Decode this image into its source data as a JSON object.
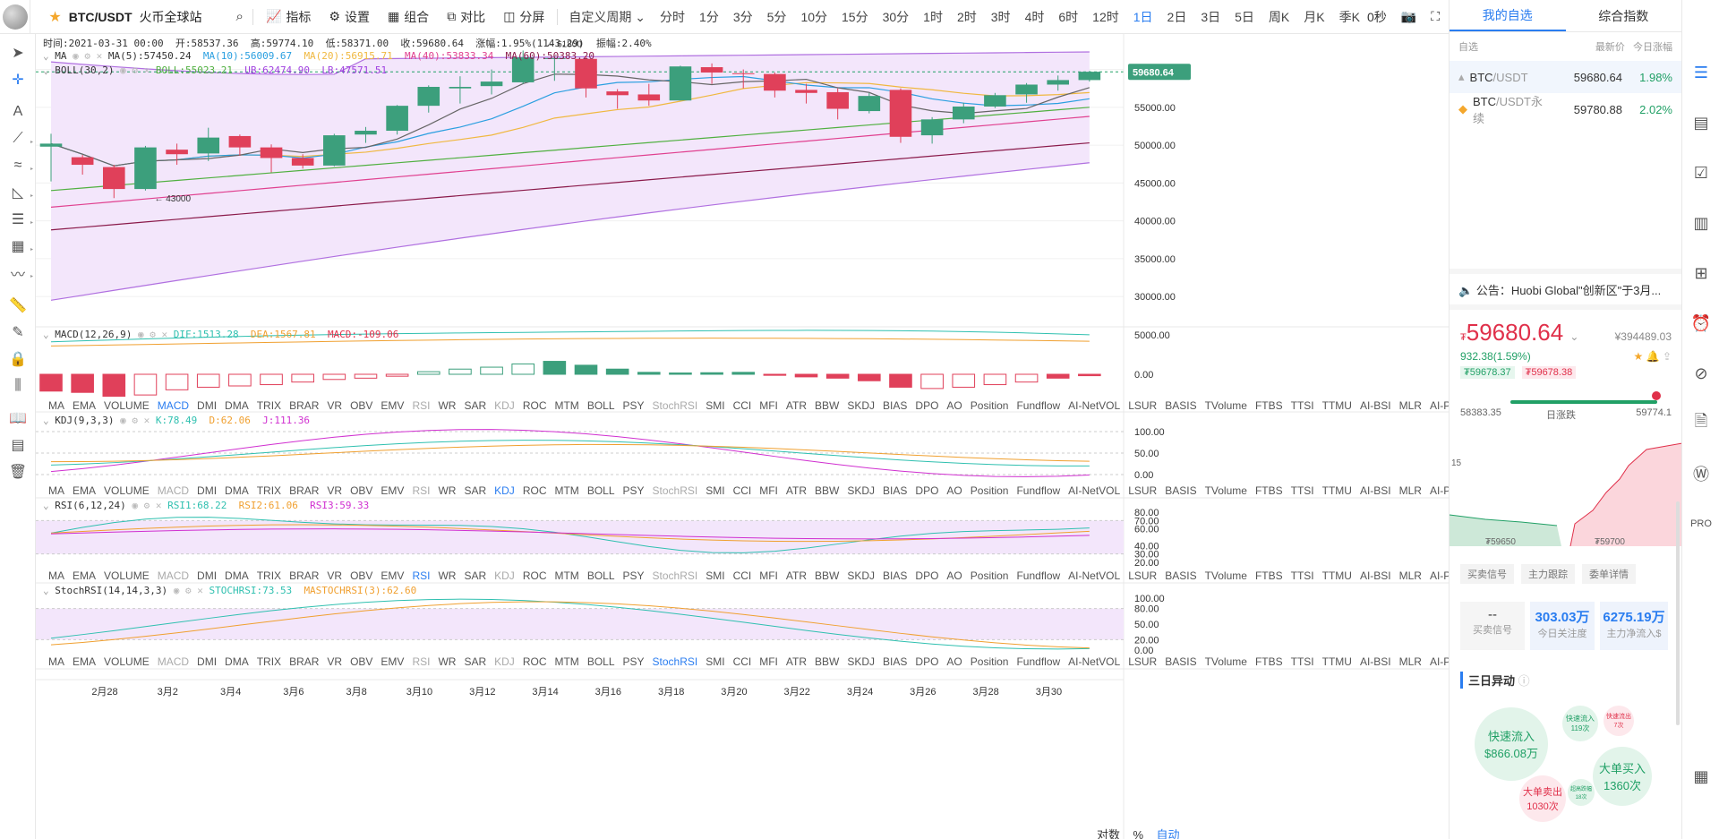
{
  "header": {
    "symbol": "BTC/USDT",
    "exchange": "火币全球站",
    "tools": [
      "指标",
      "设置",
      "组合",
      "对比",
      "分屏"
    ],
    "periods": [
      "自定义周期",
      "分时",
      "1分",
      "3分",
      "5分",
      "10分",
      "15分",
      "30分",
      "1时",
      "2时",
      "3时",
      "4时",
      "6时",
      "12时",
      "1日",
      "2日",
      "3日",
      "5日",
      "周K",
      "月K",
      "季K"
    ],
    "active_period": "1日",
    "countdown": "0秒"
  },
  "ohlc": {
    "time": "时间:2021-03-31 00:00",
    "open": "开:58537.36",
    "high": "高:59774.10",
    "low": "低:58371.00",
    "close": "收:59680.64",
    "change": "涨幅:1.95%(1143.29)",
    "amp": "振幅:2.40%"
  },
  "ma": {
    "title": "MA",
    "ma5": "MA(5):57450.24",
    "ma10": "MA(10):56009.67",
    "ma20": "MA(20):56915.71",
    "ma40": "MA(40):53833.34",
    "ma60": "MA(60):50383.20"
  },
  "boll": {
    "title": "BOLL(30,2)",
    "boll": "BOLL:55023.21",
    "ub": "UB:62474.90",
    "lb": "LB:47571.51"
  },
  "price_axis": [
    "59680.64",
    "55000.00",
    "50000.00",
    "45000.00",
    "40000.00",
    "35000.00",
    "30000.00"
  ],
  "markers": {
    "high": "61800",
    "low": "43000"
  },
  "macd": {
    "title": "MACD(12,26,9)",
    "dif": "DIF:1513.28",
    "dea": "DEA:1567.81",
    "macd": "MACD:-109.06",
    "axis": [
      "5000.00",
      "0.00"
    ]
  },
  "kdj": {
    "title": "KDJ(9,3,3)",
    "k": "K:78.49",
    "d": "D:62.06",
    "j": "J:111.36",
    "axis": [
      "100.00",
      "50.00",
      "0.00"
    ]
  },
  "rsi": {
    "title": "RSI(6,12,24)",
    "r1": "RSI1:68.22",
    "r2": "RSI2:61.06",
    "r3": "RSI3:59.33",
    "axis": [
      "80.00",
      "70.00",
      "60.00",
      "40.00",
      "30.00",
      "20.00"
    ]
  },
  "stoch": {
    "title": "StochRSI(14,14,3,3)",
    "s": "STOCHRSI:73.53",
    "m": "MASTOCHRSI(3):62.60",
    "axis": [
      "100.00",
      "80.00",
      "50.00",
      "20.00",
      "0.00"
    ]
  },
  "indicators": [
    "MA",
    "EMA",
    "VOLUME",
    "MACD",
    "DMI",
    "DMA",
    "TRIX",
    "BRAR",
    "VR",
    "OBV",
    "EMV",
    "RSI",
    "WR",
    "SAR",
    "KDJ",
    "ROC",
    "MTM",
    "BOLL",
    "PSY",
    "StochRSI",
    "SMI",
    "CCI",
    "MFI",
    "ATR",
    "BBW",
    "SKDJ",
    "BIAS",
    "DPO",
    "AO",
    "Position",
    "Fundflow",
    "AI-NetVOL",
    "LSUR",
    "BASIS",
    "TVolume",
    "FTBS",
    "TTSI",
    "TTMU",
    "AI-BSI",
    "MLR",
    "AI-PD"
  ],
  "dates": [
    "2月28",
    "3月2",
    "3月4",
    "3月6",
    "3月8",
    "3月10",
    "3月12",
    "3月14",
    "3月16",
    "3月18",
    "3月20",
    "3月22",
    "3月24",
    "3月26",
    "3月28",
    "3月30"
  ],
  "bottom": {
    "log": "对数",
    "pct": "%",
    "auto": "自动"
  },
  "candles": [
    [
      49800,
      50200,
      45200,
      51500
    ],
    [
      48400,
      47400,
      46100,
      48700
    ],
    [
      47100,
      44200,
      43000,
      47400
    ],
    [
      44200,
      49700,
      44000,
      49900
    ],
    [
      49400,
      48800,
      47400,
      50200
    ],
    [
      48900,
      51000,
      47900,
      52300
    ],
    [
      51200,
      49700,
      48600,
      51400
    ],
    [
      49700,
      48300,
      46400,
      50100
    ],
    [
      48300,
      47300,
      46900,
      48800
    ],
    [
      47300,
      51300,
      47200,
      51500
    ],
    [
      51400,
      51900,
      50300,
      52400
    ],
    [
      51900,
      55200,
      51400,
      55300
    ],
    [
      55200,
      57700,
      54300,
      57900
    ],
    [
      57500,
      57700,
      55500,
      59100
    ],
    [
      57800,
      58400,
      56700,
      60000
    ],
    [
      58300,
      61600,
      58100,
      62500
    ],
    [
      61500,
      61500,
      58500,
      61800
    ],
    [
      61400,
      57500,
      56300,
      61800
    ],
    [
      57100,
      56600,
      54800,
      57400
    ],
    [
      56700,
      55900,
      55200,
      58100
    ],
    [
      55900,
      60400,
      55900,
      60500
    ],
    [
      60300,
      59600,
      58100,
      60800
    ],
    [
      59500,
      59400,
      57500,
      60000
    ],
    [
      59400,
      57200,
      56300,
      59600
    ],
    [
      57300,
      56900,
      55500,
      58100
    ],
    [
      57000,
      54800,
      53400,
      57500
    ],
    [
      54500,
      56500,
      54200,
      56900
    ],
    [
      57300,
      51100,
      50300,
      57500
    ],
    [
      51300,
      53400,
      50200,
      53700
    ],
    [
      53400,
      55100,
      52900,
      55600
    ],
    [
      55100,
      56600,
      54900,
      56900
    ],
    [
      56700,
      58000,
      55600,
      58200
    ],
    [
      58000,
      58600,
      57200,
      59200
    ],
    [
      58600,
      59700,
      58400,
      59800
    ]
  ],
  "macd_hist": [
    -1300,
    -1400,
    -1700,
    -1600,
    -1200,
    -1000,
    -900,
    -800,
    -600,
    -400,
    -300,
    -150,
    200,
    400,
    550,
    800,
    1000,
    700,
    400,
    150,
    100,
    120,
    150,
    -80,
    -200,
    -300,
    -500,
    -1000,
    -1100,
    -1000,
    -800,
    -600,
    -300,
    -109
  ],
  "right": {
    "tabs": [
      "我的自选",
      "综合指数"
    ],
    "filter": "自选",
    "col_price": "最新价",
    "col_change": "今日涨幅",
    "watch": [
      {
        "name": "BTC",
        "quote": "/USDT",
        "price": "59680.64",
        "change": "1.98%"
      },
      {
        "name": "BTC",
        "quote": "/USDT永续",
        "price": "59780.88",
        "change": "2.02%"
      }
    ],
    "notice": "公告：Huobi Global\"创新区\"于3月...",
    "price": "59680.64",
    "price_cny": "¥394489.03",
    "change": "932.38(1.59%)",
    "bid": "₮59678.37",
    "ask": "₮59678.38",
    "range_low": "58383.35",
    "range_label": "日涨跌",
    "range_high": "59774.1",
    "depth_left": "₮59650",
    "depth_right": "₮59700",
    "depth_y": "15",
    "signal_tabs": [
      "买卖信号",
      "主力跟踪",
      "委单详情"
    ],
    "stats": [
      {
        "v": "--",
        "l": "买卖信号"
      },
      {
        "v": "303.03万",
        "l": "今日关注度"
      },
      {
        "v": "6275.19万",
        "l": "主力净流入$"
      }
    ],
    "three_day": "三日异动",
    "bubbles": [
      {
        "t": "快速流入",
        "v": "$866.08万"
      },
      {
        "t": "快速流入",
        "v": "119次"
      },
      {
        "t": "快速流出",
        "v": "7次"
      },
      {
        "t": "大单买入",
        "v": "1360次"
      },
      {
        "t": "大单卖出",
        "v": "1030次"
      },
      {
        "t": "超高跌幅",
        "v": "18次"
      }
    ]
  }
}
